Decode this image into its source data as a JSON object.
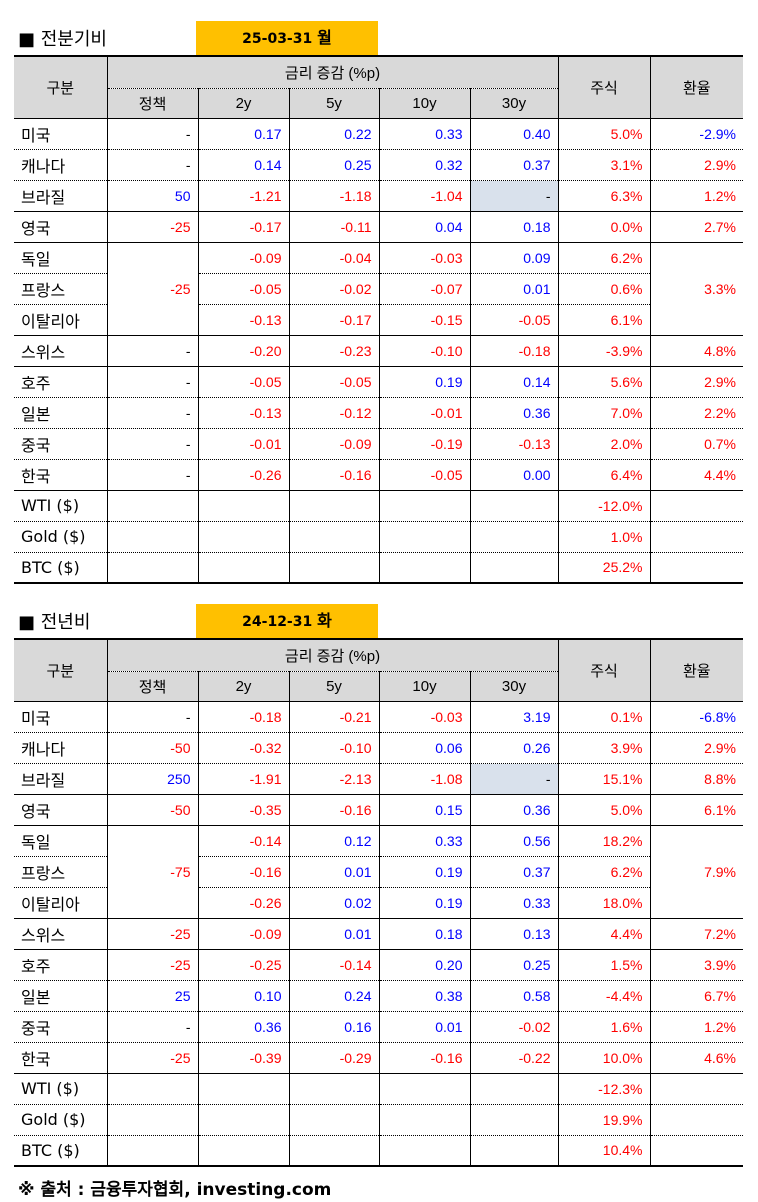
{
  "sections": [
    {
      "title": "■ 전분기비",
      "date": "25-03-31",
      "dow": "월",
      "rows": [
        {
          "name": "미국",
          "policy": "-",
          "y2": "0.17",
          "y5": "0.22",
          "y10": "0.33",
          "y30": "0.40",
          "stock": "5.0%",
          "fx": "-2.9%"
        },
        {
          "name": "캐나다",
          "policy": "-",
          "y2": "0.14",
          "y5": "0.25",
          "y10": "0.32",
          "y30": "0.37",
          "stock": "3.1%",
          "fx": "2.9%"
        },
        {
          "name": "브라질",
          "policy": "50",
          "y2": "-1.21",
          "y5": "-1.18",
          "y10": "-1.04",
          "y30": "-",
          "stock": "6.3%",
          "fx": "1.2%"
        },
        {
          "name": "영국",
          "policy": "-25",
          "y2": "-0.17",
          "y5": "-0.11",
          "y10": "0.04",
          "y30": "0.18",
          "stock": "0.0%",
          "fx": "2.7%"
        },
        {
          "name": "독일",
          "policy": "-25",
          "y2": "-0.09",
          "y5": "-0.04",
          "y10": "-0.03",
          "y30": "0.09",
          "stock": "6.2%",
          "fx": "3.3%"
        },
        {
          "name": "프랑스",
          "policy": "",
          "y2": "-0.05",
          "y5": "-0.02",
          "y10": "-0.07",
          "y30": "0.01",
          "stock": "0.6%",
          "fx": ""
        },
        {
          "name": "이탈리아",
          "policy": "",
          "y2": "-0.13",
          "y5": "-0.17",
          "y10": "-0.15",
          "y30": "-0.05",
          "stock": "6.1%",
          "fx": ""
        },
        {
          "name": "스위스",
          "policy": "-",
          "y2": "-0.20",
          "y5": "-0.23",
          "y10": "-0.10",
          "y30": "-0.18",
          "stock": "-3.9%",
          "fx": "4.8%"
        },
        {
          "name": "호주",
          "policy": "-",
          "y2": "-0.05",
          "y5": "-0.05",
          "y10": "0.19",
          "y30": "0.14",
          "stock": "5.6%",
          "fx": "2.9%"
        },
        {
          "name": "일본",
          "policy": "-",
          "y2": "-0.13",
          "y5": "-0.12",
          "y10": "-0.01",
          "y30": "0.36",
          "stock": "7.0%",
          "fx": "2.2%"
        },
        {
          "name": "중국",
          "policy": "-",
          "y2": "-0.01",
          "y5": "-0.09",
          "y10": "-0.19",
          "y30": "-0.13",
          "stock": "2.0%",
          "fx": "0.7%"
        },
        {
          "name": "한국",
          "policy": "-",
          "y2": "-0.26",
          "y5": "-0.16",
          "y10": "-0.05",
          "y30": "0.00",
          "stock": "6.4%",
          "fx": "4.4%"
        },
        {
          "name": "WTI ($)",
          "stock": "-12.0%"
        },
        {
          "name": "Gold ($)",
          "stock": "1.0%"
        },
        {
          "name": "BTC ($)",
          "stock": "25.2%"
        }
      ]
    },
    {
      "title": "■ 전년비",
      "date": "24-12-31",
      "dow": "화",
      "rows": [
        {
          "name": "미국",
          "policy": "-",
          "y2": "-0.18",
          "y5": "-0.21",
          "y10": "-0.03",
          "y30": "3.19",
          "stock": "0.1%",
          "fx": "-6.8%"
        },
        {
          "name": "캐나다",
          "policy": "-50",
          "y2": "-0.32",
          "y5": "-0.10",
          "y10": "0.06",
          "y30": "0.26",
          "stock": "3.9%",
          "fx": "2.9%"
        },
        {
          "name": "브라질",
          "policy": "250",
          "y2": "-1.91",
          "y5": "-2.13",
          "y10": "-1.08",
          "y30": "-",
          "stock": "15.1%",
          "fx": "8.8%"
        },
        {
          "name": "영국",
          "policy": "-50",
          "y2": "-0.35",
          "y5": "-0.16",
          "y10": "0.15",
          "y30": "0.36",
          "stock": "5.0%",
          "fx": "6.1%"
        },
        {
          "name": "독일",
          "policy": "-75",
          "y2": "-0.14",
          "y5": "0.12",
          "y10": "0.33",
          "y30": "0.56",
          "stock": "18.2%",
          "fx": "7.9%"
        },
        {
          "name": "프랑스",
          "policy": "",
          "y2": "-0.16",
          "y5": "0.01",
          "y10": "0.19",
          "y30": "0.37",
          "stock": "6.2%",
          "fx": ""
        },
        {
          "name": "이탈리아",
          "policy": "",
          "y2": "-0.26",
          "y5": "0.02",
          "y10": "0.19",
          "y30": "0.33",
          "stock": "18.0%",
          "fx": ""
        },
        {
          "name": "스위스",
          "policy": "-25",
          "y2": "-0.09",
          "y5": "0.01",
          "y10": "0.18",
          "y30": "0.13",
          "stock": "4.4%",
          "fx": "7.2%"
        },
        {
          "name": "호주",
          "policy": "-25",
          "y2": "-0.25",
          "y5": "-0.14",
          "y10": "0.20",
          "y30": "0.25",
          "stock": "1.5%",
          "fx": "3.9%"
        },
        {
          "name": "일본",
          "policy": "25",
          "y2": "0.10",
          "y5": "0.24",
          "y10": "0.38",
          "y30": "0.58",
          "stock": "-4.4%",
          "fx": "6.7%"
        },
        {
          "name": "중국",
          "policy": "-",
          "y2": "0.36",
          "y5": "0.16",
          "y10": "0.01",
          "y30": "-0.02",
          "stock": "1.6%",
          "fx": "1.2%"
        },
        {
          "name": "한국",
          "policy": "-25",
          "y2": "-0.39",
          "y5": "-0.29",
          "y10": "-0.16",
          "y30": "-0.22",
          "stock": "10.0%",
          "fx": "4.6%"
        },
        {
          "name": "WTI ($)",
          "stock": "-12.3%"
        },
        {
          "name": "Gold ($)",
          "stock": "19.9%"
        },
        {
          "name": "BTC ($)",
          "stock": "10.4%"
        }
      ]
    }
  ],
  "headers": {
    "category": "구분",
    "rate_change": "금리 증감 (%p)",
    "policy": "정책",
    "y2": "2y",
    "y5": "5y",
    "y10": "10y",
    "y30": "30y",
    "stock": "주식",
    "fx": "환율"
  },
  "colors": {
    "positive": "#ff0000",
    "negative": "#0000ff",
    "date_box": "#ffc000",
    "header_bg": "#d9d9d9",
    "empty_cell": "#d9e1ec"
  },
  "source": "※ 출처 : 금융투자협회, investing.com"
}
